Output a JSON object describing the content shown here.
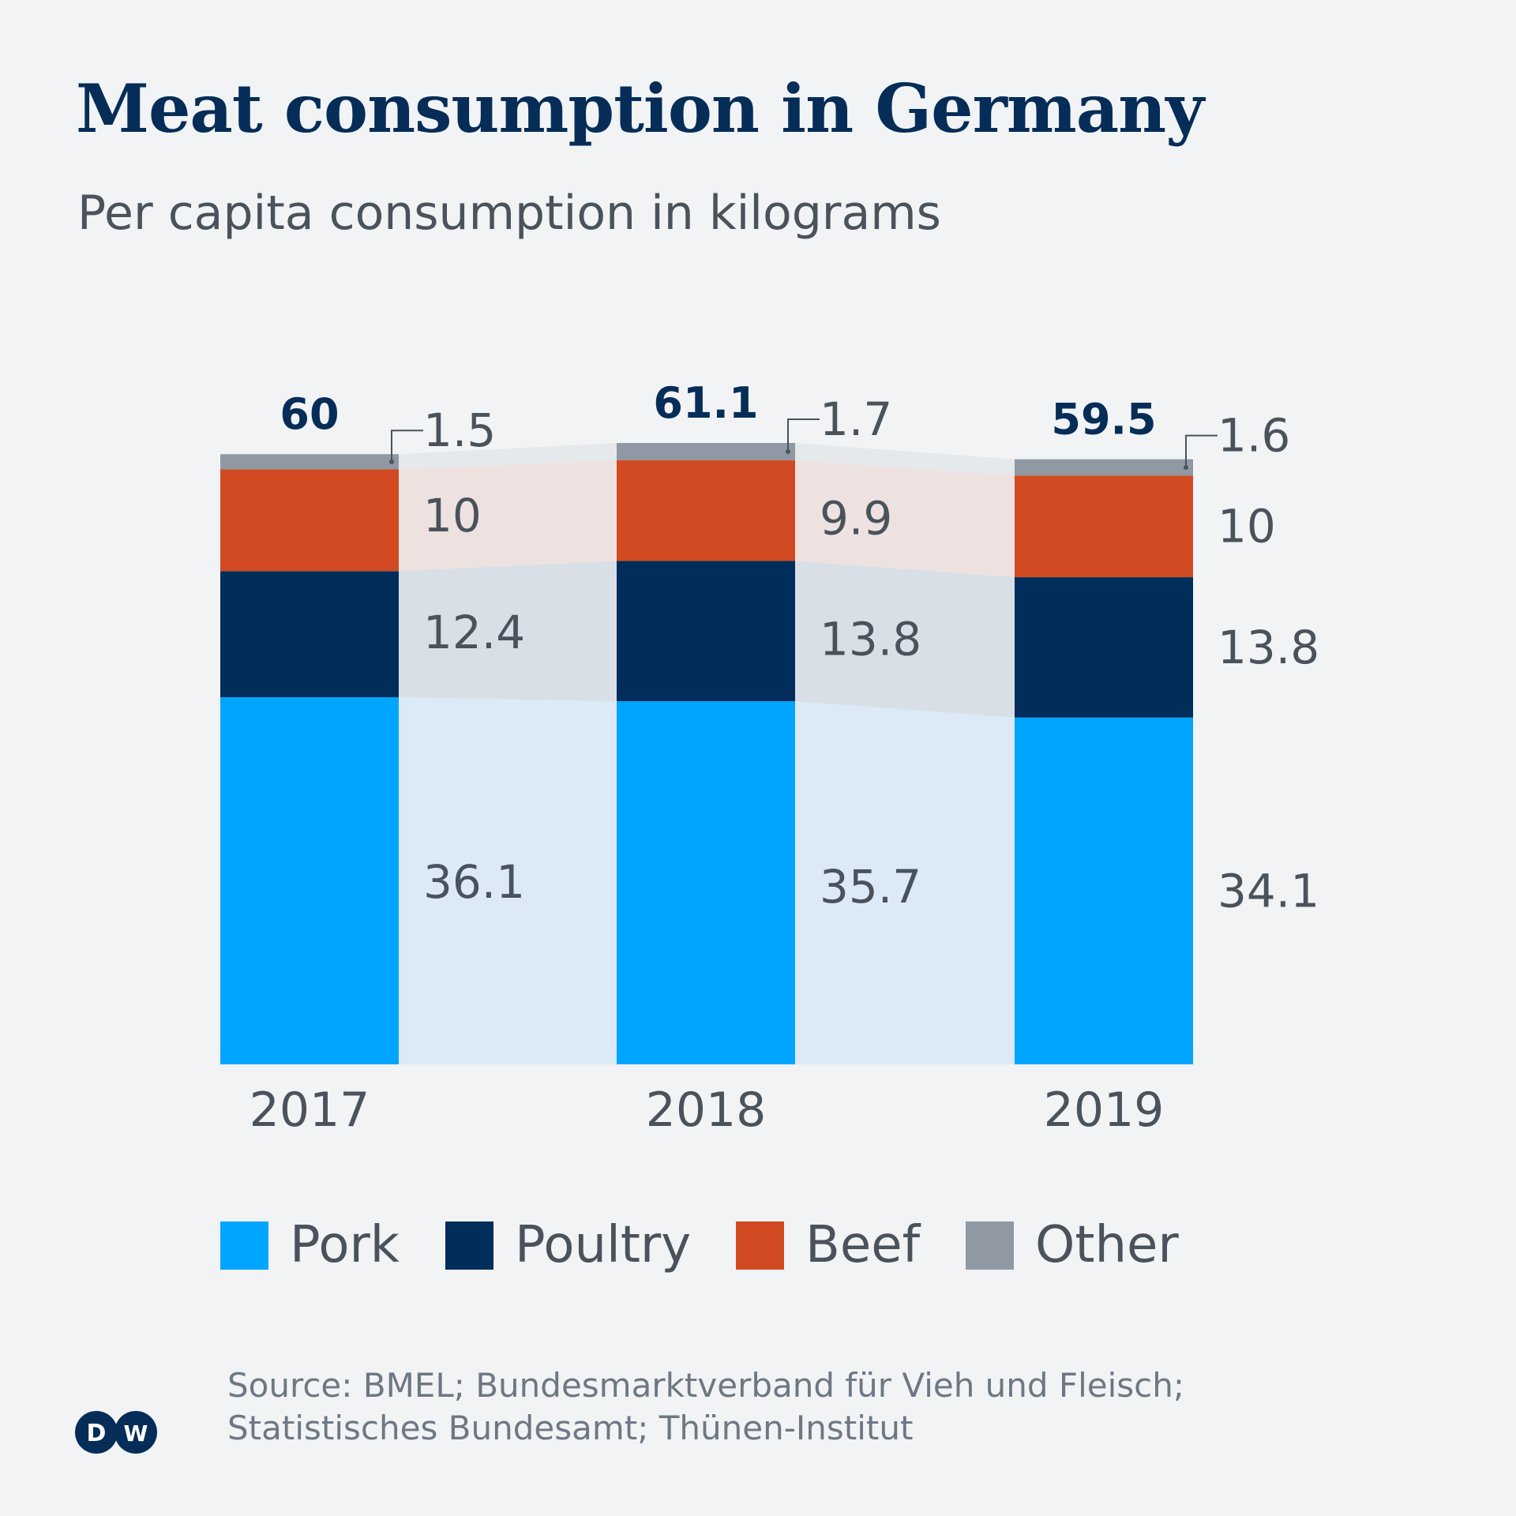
{
  "title": "Meat consumption in Germany",
  "subtitle": "Per capita consumption in kilograms",
  "source_lines": [
    "Source: BMEL; Bundesmarktverband für Vieh und Fleisch;",
    "Statistisches Bundesamt; Thünen-Institut"
  ],
  "logo": "DW",
  "chart_data": {
    "type": "bar",
    "stacked": true,
    "categories": [
      "2017",
      "2018",
      "2019"
    ],
    "totals": [
      "60",
      "61.1",
      "59.5"
    ],
    "series": [
      {
        "name": "Pork",
        "values": [
          36.1,
          35.7,
          34.1
        ],
        "labels": [
          "36.1",
          "35.7",
          "34.1"
        ],
        "color": "#00a5ff",
        "band": "#dbeaf6"
      },
      {
        "name": "Poultry",
        "values": [
          12.4,
          13.8,
          13.8
        ],
        "labels": [
          "12.4",
          "13.8",
          "13.8"
        ],
        "color": "#002d5a",
        "band": "#d8dfe6"
      },
      {
        "name": "Beef",
        "values": [
          10,
          9.9,
          10
        ],
        "labels": [
          "10",
          "9.9",
          "10"
        ],
        "color": "#d24a21",
        "band": "#ede2df"
      },
      {
        "name": "Other",
        "values": [
          1.5,
          1.7,
          1.6
        ],
        "labels": [
          "1.5",
          "1.7",
          "1.6"
        ],
        "color": "#8f98a3",
        "band": "#e6e9ec"
      }
    ],
    "ylim": [
      0,
      61.1
    ],
    "grid": false,
    "legend": "bottom"
  }
}
